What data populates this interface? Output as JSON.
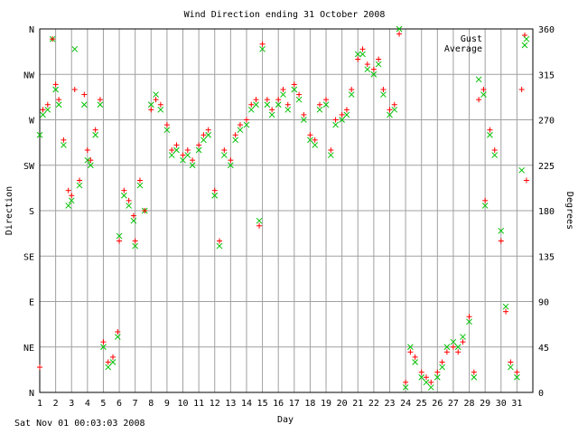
{
  "chart_data": {
    "type": "scatter",
    "title": "Wind Direction ending 31 October 2008",
    "xlabel": "Day",
    "ylabel_left": "Direction",
    "ylabel_right": "Degrees",
    "x_ticks": [
      "1",
      "2",
      "3",
      "4",
      "5",
      "6",
      "7",
      "8",
      "9",
      "10",
      "11",
      "12",
      "13",
      "14",
      "15",
      "16",
      "17",
      "18",
      "19",
      "20",
      "21",
      "22",
      "23",
      "24",
      "25",
      "26",
      "27",
      "28",
      "29",
      "30",
      "31"
    ],
    "xlim": [
      1,
      32
    ],
    "ylim": [
      0,
      360
    ],
    "y_left_ticks": [
      {
        "value": 0,
        "label": "N"
      },
      {
        "value": 45,
        "label": "NE"
      },
      {
        "value": 90,
        "label": "E"
      },
      {
        "value": 135,
        "label": "SE"
      },
      {
        "value": 180,
        "label": "S"
      },
      {
        "value": 225,
        "label": "SW"
      },
      {
        "value": 270,
        "label": "W"
      },
      {
        "value": 315,
        "label": "NW"
      },
      {
        "value": 360,
        "label": "N"
      }
    ],
    "y_right_ticks": [
      0,
      45,
      90,
      135,
      180,
      225,
      270,
      315,
      360
    ],
    "grid": true,
    "legend_position": "top-right",
    "series": [
      {
        "name": "Gust",
        "color": "#ff0000",
        "marker": "plus",
        "points": [
          [
            1.0,
            25
          ],
          [
            1.2,
            280
          ],
          [
            1.5,
            285
          ],
          [
            1.8,
            350
          ],
          [
            2.0,
            305
          ],
          [
            2.2,
            290
          ],
          [
            2.5,
            250
          ],
          [
            2.8,
            200
          ],
          [
            3.0,
            195
          ],
          [
            3.2,
            300
          ],
          [
            3.5,
            210
          ],
          [
            3.8,
            295
          ],
          [
            4.0,
            240
          ],
          [
            4.2,
            230
          ],
          [
            4.5,
            260
          ],
          [
            4.8,
            290
          ],
          [
            5.0,
            50
          ],
          [
            5.3,
            30
          ],
          [
            5.6,
            35
          ],
          [
            5.9,
            60
          ],
          [
            6.0,
            150
          ],
          [
            6.3,
            200
          ],
          [
            6.6,
            190
          ],
          [
            6.9,
            175
          ],
          [
            7.0,
            150
          ],
          [
            7.3,
            210
          ],
          [
            7.6,
            180
          ],
          [
            8.0,
            280
          ],
          [
            8.3,
            290
          ],
          [
            8.6,
            285
          ],
          [
            9.0,
            265
          ],
          [
            9.3,
            240
          ],
          [
            9.6,
            245
          ],
          [
            10.0,
            235
          ],
          [
            10.3,
            240
          ],
          [
            10.6,
            230
          ],
          [
            11.0,
            245
          ],
          [
            11.3,
            255
          ],
          [
            11.6,
            260
          ],
          [
            12.0,
            200
          ],
          [
            12.3,
            150
          ],
          [
            12.6,
            240
          ],
          [
            13.0,
            230
          ],
          [
            13.3,
            255
          ],
          [
            13.6,
            265
          ],
          [
            14.0,
            270
          ],
          [
            14.3,
            285
          ],
          [
            14.6,
            290
          ],
          [
            14.8,
            165
          ],
          [
            15.0,
            345
          ],
          [
            15.3,
            290
          ],
          [
            15.6,
            280
          ],
          [
            16.0,
            290
          ],
          [
            16.3,
            300
          ],
          [
            16.6,
            285
          ],
          [
            17.0,
            305
          ],
          [
            17.3,
            295
          ],
          [
            17.6,
            275
          ],
          [
            18.0,
            255
          ],
          [
            18.3,
            250
          ],
          [
            18.6,
            285
          ],
          [
            19.0,
            290
          ],
          [
            19.3,
            240
          ],
          [
            19.6,
            270
          ],
          [
            20.0,
            275
          ],
          [
            20.3,
            280
          ],
          [
            20.6,
            300
          ],
          [
            21.0,
            330
          ],
          [
            21.3,
            340
          ],
          [
            21.6,
            325
          ],
          [
            22.0,
            320
          ],
          [
            22.3,
            330
          ],
          [
            22.6,
            300
          ],
          [
            23.0,
            280
          ],
          [
            23.3,
            285
          ],
          [
            23.6,
            355
          ],
          [
            24.0,
            10
          ],
          [
            24.3,
            40
          ],
          [
            24.6,
            35
          ],
          [
            25.0,
            20
          ],
          [
            25.3,
            15
          ],
          [
            25.6,
            10
          ],
          [
            26.0,
            20
          ],
          [
            26.3,
            30
          ],
          [
            26.6,
            40
          ],
          [
            27.0,
            45
          ],
          [
            27.3,
            40
          ],
          [
            27.6,
            50
          ],
          [
            28.0,
            75
          ],
          [
            28.3,
            20
          ],
          [
            28.6,
            290
          ],
          [
            28.9,
            300
          ],
          [
            29.0,
            190
          ],
          [
            29.3,
            260
          ],
          [
            29.6,
            240
          ],
          [
            30.0,
            150
          ],
          [
            30.3,
            80
          ],
          [
            30.6,
            30
          ],
          [
            31.0,
            20
          ],
          [
            31.3,
            300
          ],
          [
            31.6,
            210
          ]
        ]
      },
      {
        "name": "Average",
        "color": "#00c000",
        "marker": "x",
        "points": [
          [
            1.0,
            255
          ],
          [
            1.2,
            275
          ],
          [
            1.5,
            280
          ],
          [
            1.8,
            350
          ],
          [
            2.0,
            300
          ],
          [
            2.2,
            285
          ],
          [
            2.5,
            245
          ],
          [
            2.8,
            185
          ],
          [
            3.0,
            190
          ],
          [
            3.2,
            340
          ],
          [
            3.5,
            205
          ],
          [
            3.8,
            285
          ],
          [
            4.0,
            230
          ],
          [
            4.2,
            225
          ],
          [
            4.5,
            255
          ],
          [
            4.8,
            285
          ],
          [
            5.0,
            45
          ],
          [
            5.3,
            25
          ],
          [
            5.6,
            30
          ],
          [
            5.9,
            55
          ],
          [
            6.0,
            155
          ],
          [
            6.3,
            195
          ],
          [
            6.6,
            185
          ],
          [
            6.9,
            170
          ],
          [
            7.0,
            145
          ],
          [
            7.3,
            205
          ],
          [
            7.6,
            180
          ],
          [
            8.0,
            285
          ],
          [
            8.3,
            295
          ],
          [
            8.6,
            280
          ],
          [
            9.0,
            260
          ],
          [
            9.3,
            235
          ],
          [
            9.6,
            240
          ],
          [
            10.0,
            230
          ],
          [
            10.3,
            235
          ],
          [
            10.6,
            225
          ],
          [
            11.0,
            240
          ],
          [
            11.3,
            250
          ],
          [
            11.6,
            255
          ],
          [
            12.0,
            195
          ],
          [
            12.3,
            145
          ],
          [
            12.6,
            235
          ],
          [
            13.0,
            225
          ],
          [
            13.3,
            250
          ],
          [
            13.6,
            260
          ],
          [
            14.0,
            265
          ],
          [
            14.3,
            280
          ],
          [
            14.6,
            285
          ],
          [
            14.8,
            170
          ],
          [
            15.0,
            340
          ],
          [
            15.3,
            285
          ],
          [
            15.6,
            275
          ],
          [
            16.0,
            285
          ],
          [
            16.3,
            295
          ],
          [
            16.6,
            280
          ],
          [
            17.0,
            300
          ],
          [
            17.3,
            290
          ],
          [
            17.6,
            270
          ],
          [
            18.0,
            250
          ],
          [
            18.3,
            245
          ],
          [
            18.6,
            280
          ],
          [
            19.0,
            285
          ],
          [
            19.3,
            235
          ],
          [
            19.6,
            265
          ],
          [
            20.0,
            270
          ],
          [
            20.3,
            275
          ],
          [
            20.6,
            295
          ],
          [
            21.0,
            335
          ],
          [
            21.3,
            335
          ],
          [
            21.6,
            320
          ],
          [
            22.0,
            315
          ],
          [
            22.3,
            325
          ],
          [
            22.6,
            295
          ],
          [
            23.0,
            275
          ],
          [
            23.3,
            280
          ],
          [
            23.6,
            360
          ],
          [
            24.0,
            5
          ],
          [
            24.3,
            45
          ],
          [
            24.6,
            30
          ],
          [
            25.0,
            15
          ],
          [
            25.3,
            10
          ],
          [
            25.6,
            5
          ],
          [
            26.0,
            15
          ],
          [
            26.3,
            25
          ],
          [
            26.6,
            45
          ],
          [
            27.0,
            50
          ],
          [
            27.3,
            45
          ],
          [
            27.6,
            55
          ],
          [
            28.0,
            70
          ],
          [
            28.3,
            15
          ],
          [
            28.6,
            310
          ],
          [
            28.9,
            295
          ],
          [
            29.0,
            185
          ],
          [
            29.3,
            255
          ],
          [
            29.6,
            235
          ],
          [
            30.0,
            160
          ],
          [
            30.3,
            85
          ],
          [
            30.6,
            25
          ],
          [
            31.0,
            15
          ],
          [
            31.3,
            220
          ],
          [
            31.6,
            350
          ]
        ]
      }
    ]
  },
  "footer": "Sat Nov 01 00:03:03 2008"
}
